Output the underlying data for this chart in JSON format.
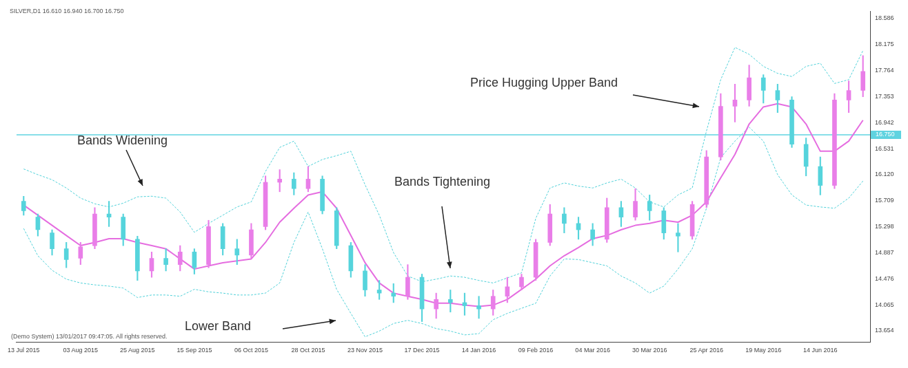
{
  "chart_data": {
    "type": "candlestick",
    "annotations": [
      "SILVER,D1 16.610 16.940 16.700 16.750",
      "Bands Widening",
      "Bands Tightening",
      "Lower Band",
      "Price Hugging Upper Band",
      "(Demo System) 13/01/2017 09:47:05. All rights reserved."
    ],
    "categories": [
      "13 Jul 2015",
      null,
      null,
      null,
      "03 Aug 2015",
      null,
      null,
      null,
      "25 Aug 2015",
      null,
      null,
      null,
      "15 Sep 2015",
      null,
      null,
      null,
      "06 Oct 2015",
      null,
      null,
      null,
      "28 Oct 2015",
      null,
      null,
      null,
      "23 Nov 2015",
      null,
      null,
      null,
      "17 Dec 2015",
      null,
      null,
      null,
      "14 Jan 2016",
      null,
      null,
      null,
      "09 Feb 2016",
      null,
      null,
      null,
      "04 Mar 2016",
      null,
      null,
      null,
      "30 Mar 2016",
      null,
      null,
      null,
      "25 Apr 2016",
      null,
      null,
      null,
      "19 May 2016",
      null,
      null,
      null,
      "14 Jun 2016",
      null,
      null,
      null
    ],
    "ohlc": [
      [
        15.7,
        15.78,
        15.48,
        15.55
      ],
      [
        15.45,
        15.5,
        15.15,
        15.25
      ],
      [
        15.2,
        15.25,
        14.85,
        14.95
      ],
      [
        14.95,
        15.05,
        14.65,
        14.78
      ],
      [
        14.8,
        15.05,
        14.7,
        14.98
      ],
      [
        15.0,
        15.6,
        14.95,
        15.5
      ],
      [
        15.5,
        15.7,
        15.3,
        15.45
      ],
      [
        15.45,
        15.5,
        15.0,
        15.1
      ],
      [
        15.1,
        15.15,
        14.45,
        14.6
      ],
      [
        14.6,
        14.9,
        14.5,
        14.8
      ],
      [
        14.8,
        14.95,
        14.6,
        14.7
      ],
      [
        14.7,
        15.0,
        14.6,
        14.9
      ],
      [
        14.9,
        14.95,
        14.55,
        14.65
      ],
      [
        14.7,
        15.4,
        14.65,
        15.3
      ],
      [
        15.3,
        15.35,
        14.85,
        14.95
      ],
      [
        14.95,
        15.1,
        14.7,
        14.85
      ],
      [
        14.85,
        15.35,
        14.8,
        15.25
      ],
      [
        15.3,
        16.1,
        15.25,
        16.0
      ],
      [
        16.0,
        16.2,
        15.85,
        16.05
      ],
      [
        16.05,
        16.15,
        15.8,
        15.9
      ],
      [
        15.9,
        16.25,
        15.85,
        16.05
      ],
      [
        16.05,
        16.1,
        15.5,
        15.55
      ],
      [
        15.55,
        15.6,
        14.95,
        15.0
      ],
      [
        15.0,
        15.05,
        14.5,
        14.6
      ],
      [
        14.6,
        14.7,
        14.2,
        14.3
      ],
      [
        14.3,
        14.45,
        14.15,
        14.25
      ],
      [
        14.25,
        14.4,
        14.1,
        14.2
      ],
      [
        14.2,
        14.7,
        14.15,
        14.5
      ],
      [
        14.5,
        14.55,
        13.8,
        14.0
      ],
      [
        14.0,
        14.25,
        13.85,
        14.15
      ],
      [
        14.15,
        14.3,
        13.95,
        14.1
      ],
      [
        14.1,
        14.25,
        13.9,
        14.05
      ],
      [
        14.05,
        14.2,
        13.85,
        14.0
      ],
      [
        14.0,
        14.3,
        13.9,
        14.2
      ],
      [
        14.2,
        14.5,
        14.1,
        14.35
      ],
      [
        14.35,
        14.55,
        14.3,
        14.5
      ],
      [
        14.5,
        15.1,
        14.45,
        15.05
      ],
      [
        15.05,
        15.65,
        15.0,
        15.5
      ],
      [
        15.5,
        15.6,
        15.2,
        15.35
      ],
      [
        15.35,
        15.45,
        15.1,
        15.25
      ],
      [
        15.25,
        15.35,
        15.0,
        15.1
      ],
      [
        15.1,
        15.75,
        15.05,
        15.6
      ],
      [
        15.6,
        15.7,
        15.3,
        15.45
      ],
      [
        15.45,
        15.9,
        15.4,
        15.7
      ],
      [
        15.7,
        15.8,
        15.4,
        15.55
      ],
      [
        15.55,
        15.6,
        15.1,
        15.2
      ],
      [
        15.2,
        15.35,
        14.9,
        15.15
      ],
      [
        15.15,
        15.7,
        15.1,
        15.65
      ],
      [
        15.65,
        16.5,
        15.6,
        16.4
      ],
      [
        16.4,
        17.4,
        16.35,
        17.2
      ],
      [
        17.2,
        17.55,
        16.95,
        17.3
      ],
      [
        17.3,
        17.85,
        17.2,
        17.65
      ],
      [
        17.65,
        17.7,
        17.25,
        17.45
      ],
      [
        17.45,
        17.55,
        17.1,
        17.3
      ],
      [
        17.3,
        17.35,
        16.55,
        16.6
      ],
      [
        16.6,
        16.7,
        16.1,
        16.25
      ],
      [
        16.25,
        16.4,
        15.8,
        15.95
      ],
      [
        15.95,
        17.4,
        15.9,
        17.3
      ],
      [
        17.3,
        17.6,
        17.1,
        17.45
      ],
      [
        17.45,
        18.0,
        17.35,
        17.75
      ]
    ],
    "colors": [
      "#56d4dc",
      "#56d4dc",
      "#56d4dc",
      "#56d4dc",
      "#e97ee8",
      "#e97ee8",
      "#56d4dc",
      "#56d4dc",
      "#56d4dc",
      "#e97ee8",
      "#56d4dc",
      "#e97ee8",
      "#56d4dc",
      "#e97ee8",
      "#56d4dc",
      "#56d4dc",
      "#e97ee8",
      "#e97ee8",
      "#e97ee8",
      "#56d4dc",
      "#e97ee8",
      "#56d4dc",
      "#56d4dc",
      "#56d4dc",
      "#56d4dc",
      "#56d4dc",
      "#56d4dc",
      "#e97ee8",
      "#56d4dc",
      "#e97ee8",
      "#56d4dc",
      "#56d4dc",
      "#56d4dc",
      "#e97ee8",
      "#e97ee8",
      "#e97ee8",
      "#e97ee8",
      "#e97ee8",
      "#56d4dc",
      "#56d4dc",
      "#56d4dc",
      "#e97ee8",
      "#56d4dc",
      "#e97ee8",
      "#56d4dc",
      "#56d4dc",
      "#56d4dc",
      "#e97ee8",
      "#e97ee8",
      "#e97ee8",
      "#e97ee8",
      "#e97ee8",
      "#56d4dc",
      "#56d4dc",
      "#56d4dc",
      "#56d4dc",
      "#56d4dc",
      "#e97ee8",
      "#e97ee8",
      "#e97ee8"
    ],
    "series": [
      {
        "type": "line",
        "color": "#4fd1d9",
        "line_style": "dotted",
        "values": [
          16.21,
          16.12,
          16.04,
          15.91,
          15.75,
          15.66,
          15.61,
          15.67,
          15.77,
          15.78,
          15.75,
          15.53,
          15.21,
          15.35,
          15.48,
          15.61,
          15.69,
          16.17,
          16.55,
          16.65,
          16.25,
          16.36,
          16.42,
          16.49,
          15.96,
          15.48,
          14.89,
          14.52,
          14.43,
          14.47,
          14.52,
          14.5,
          14.45,
          14.41,
          14.49,
          14.57,
          15.43,
          15.91,
          15.99,
          15.94,
          15.91,
          15.99,
          16.05,
          15.91,
          15.69,
          15.61,
          15.8,
          15.91,
          16.81,
          17.62,
          18.13,
          18.02,
          17.83,
          17.72,
          17.67,
          17.83,
          17.88,
          17.56,
          17.62,
          18.08
        ]
      },
      {
        "type": "line",
        "color": "#e56de0",
        "line_style": "solid",
        "values": [
          15.64,
          15.48,
          15.32,
          15.16,
          15.0,
          15.05,
          15.11,
          15.11,
          15.05,
          15.0,
          14.95,
          14.79,
          14.63,
          14.68,
          14.73,
          14.76,
          14.79,
          15.05,
          15.37,
          15.59,
          15.8,
          15.85,
          15.59,
          15.16,
          14.73,
          14.41,
          14.25,
          14.2,
          14.15,
          14.09,
          14.09,
          14.06,
          14.04,
          14.06,
          14.15,
          14.31,
          14.47,
          14.68,
          14.84,
          14.97,
          15.11,
          15.16,
          15.25,
          15.32,
          15.35,
          15.4,
          15.37,
          15.48,
          15.69,
          16.07,
          16.44,
          16.92,
          17.19,
          17.24,
          17.19,
          16.92,
          16.49,
          16.49,
          16.65,
          16.98
        ]
      },
      {
        "type": "line",
        "color": "#4fd1d9",
        "line_style": "dotted",
        "values": [
          15.27,
          14.84,
          14.61,
          14.47,
          14.41,
          14.38,
          14.36,
          14.33,
          14.18,
          14.22,
          14.22,
          14.2,
          14.31,
          14.27,
          14.25,
          14.22,
          14.22,
          14.25,
          14.41,
          15.05,
          15.53,
          14.95,
          14.31,
          13.93,
          13.56,
          13.65,
          13.77,
          13.82,
          13.77,
          13.69,
          13.65,
          13.59,
          13.61,
          13.83,
          13.93,
          14.01,
          14.09,
          14.52,
          14.79,
          14.78,
          14.73,
          14.68,
          14.52,
          14.41,
          14.25,
          14.36,
          14.63,
          14.95,
          15.59,
          16.39,
          16.65,
          16.87,
          16.65,
          16.12,
          15.8,
          15.64,
          15.61,
          15.59,
          15.75,
          16.02
        ]
      }
    ],
    "ylim": [
      13.48,
      18.7
    ],
    "yticks": [
      {
        "value": 13.654,
        "label": "13.654"
      },
      {
        "value": 14.065,
        "label": "14.065"
      },
      {
        "value": 14.476,
        "label": "14.476"
      },
      {
        "value": 14.887,
        "label": "14.887"
      },
      {
        "value": 15.298,
        "label": "15.298"
      },
      {
        "value": 15.709,
        "label": "15.709"
      },
      {
        "value": 16.12,
        "label": "16.120"
      },
      {
        "value": 16.531,
        "label": "16.531"
      },
      {
        "value": 16.942,
        "label": "16.942"
      },
      {
        "value": 17.353,
        "label": "17.353"
      },
      {
        "value": 17.764,
        "label": "17.764"
      },
      {
        "value": 18.175,
        "label": "18.175"
      },
      {
        "value": 18.586,
        "label": "18.586"
      }
    ],
    "ref_lines": [
      {
        "axis": "y",
        "value": 16.75,
        "label": "16.750",
        "color": "#5fd3e0"
      }
    ],
    "grid": false,
    "legend": false
  }
}
